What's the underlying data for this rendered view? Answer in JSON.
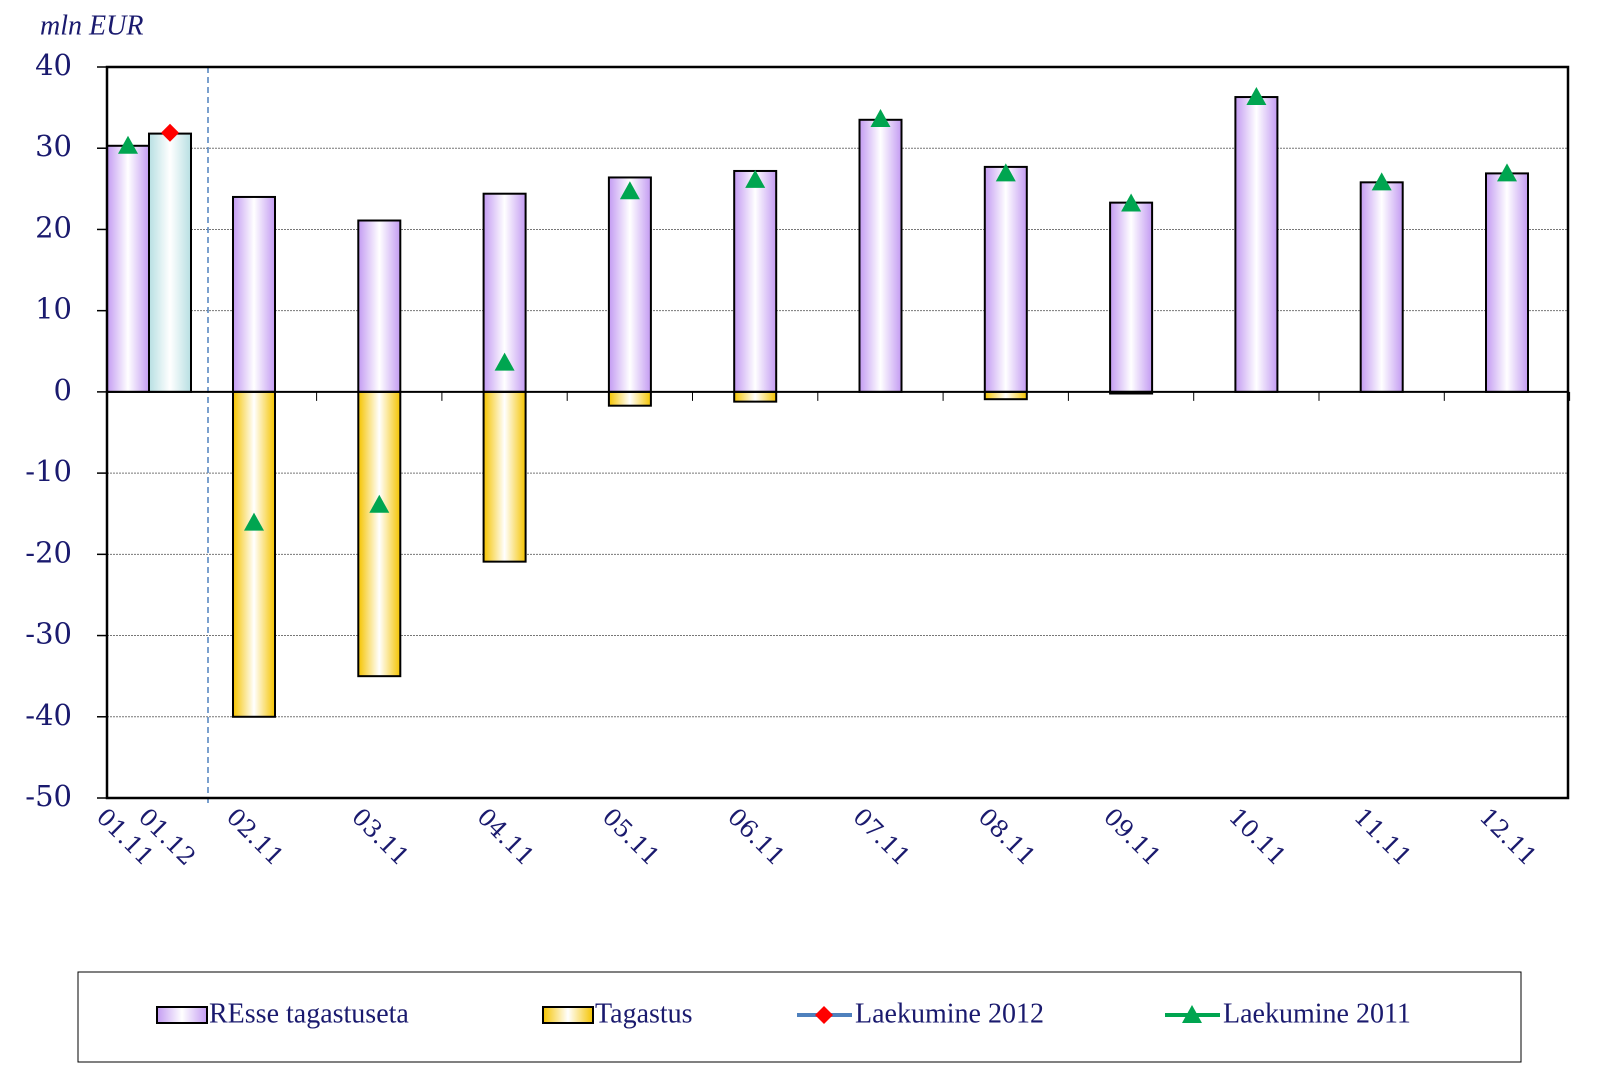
{
  "chart_data": {
    "type": "bar",
    "y_label": "mln EUR",
    "categories": [
      "01.11",
      "01.12",
      "02.11",
      "03.11",
      "04.11",
      "05.11",
      "06.11",
      "07.11",
      "08.11",
      "09.11",
      "10.11",
      "11.11",
      "12.11"
    ],
    "series": [
      {
        "name": "REsse tagastuseta",
        "kind": "bar",
        "color": "#c39bf2",
        "colors": [
          "#c39bf2",
          "#b7dfe2",
          "#c39bf2",
          "#c39bf2",
          "#c39bf2",
          "#c39bf2",
          "#c39bf2",
          "#c39bf2",
          "#c39bf2",
          "#c39bf2",
          "#c39bf2",
          "#c39bf2",
          "#c39bf2"
        ],
        "values": [
          30.3,
          31.8,
          24.0,
          21.1,
          24.4,
          26.4,
          27.2,
          33.5,
          27.7,
          23.3,
          36.3,
          25.8,
          26.9
        ]
      },
      {
        "name": "Tagastus",
        "kind": "bar",
        "color": "#f5c400",
        "values": [
          null,
          null,
          -40,
          -35,
          -20.9,
          -1.7,
          -1.2,
          0,
          -0.9,
          -0.2,
          0,
          0,
          0
        ]
      },
      {
        "name": "Laekumine 2012",
        "kind": "marker",
        "marker": "diamond",
        "color": "#ff0000",
        "line_color": "#4f81bd",
        "values": [
          null,
          31.9,
          null,
          null,
          null,
          null,
          null,
          null,
          null,
          null,
          null,
          null,
          null
        ]
      },
      {
        "name": "Laekumine 2011",
        "kind": "marker",
        "marker": "triangle",
        "color": "#00a550",
        "line_color": "#00a550",
        "values": [
          30.3,
          null,
          -16.1,
          -13.9,
          3.6,
          24.7,
          26.1,
          33.6,
          26.9,
          23.2,
          36.3,
          25.8,
          26.9
        ]
      }
    ],
    "ylim": [
      -50,
      40
    ],
    "yticks": [
      -50,
      -40,
      -30,
      -20,
      -10,
      0,
      10,
      20,
      30,
      40
    ],
    "grid": true,
    "legend": "bottom"
  }
}
